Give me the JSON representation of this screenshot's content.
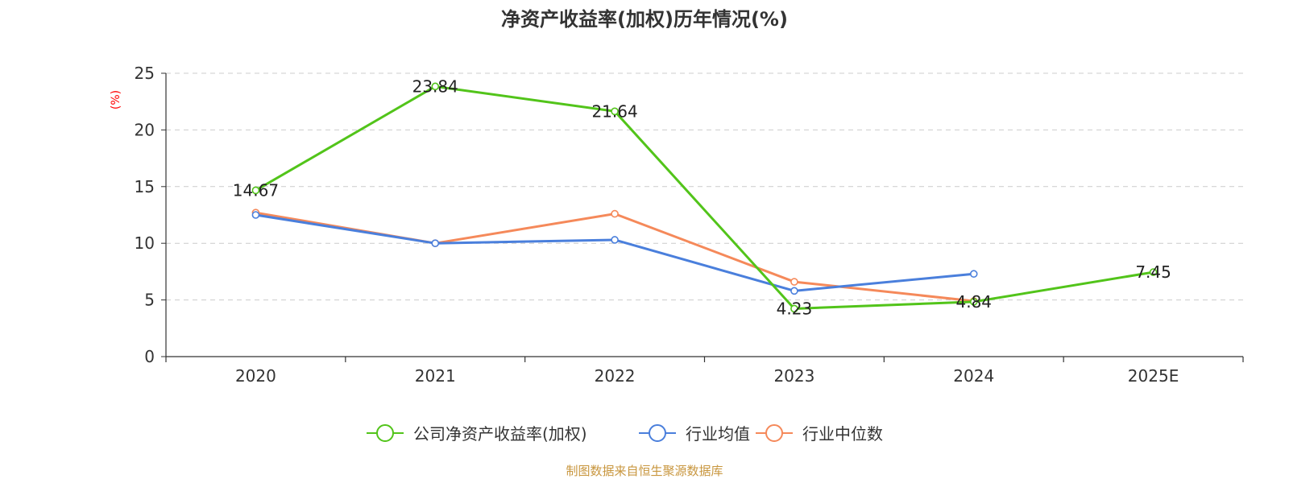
{
  "colors": {
    "company": "#52c41a",
    "industry_avg": "#4a7fdc",
    "industry_median": "#f5895a",
    "source": "#c8963e",
    "ylabel": "#ff0000"
  },
  "chart_data": {
    "type": "line",
    "title": "净资产收益率(加权)历年情况(%)",
    "ylabel": "(%)",
    "xlabel": "",
    "categories": [
      "2020",
      "2021",
      "2022",
      "2023",
      "2024",
      "2025E"
    ],
    "ylim": [
      0,
      25
    ],
    "yticks": [
      0,
      5,
      10,
      15,
      20,
      25
    ],
    "grid": true,
    "legend_position": "bottom",
    "series": [
      {
        "key": "company",
        "name": "公司净资产收益率(加权)",
        "values": [
          14.67,
          23.84,
          21.64,
          4.23,
          4.84,
          7.45
        ],
        "labels": [
          "14.67",
          "23.84",
          "21.64",
          "4.23",
          "4.84",
          "7.45"
        ]
      },
      {
        "key": "industry_avg",
        "name": "行业均值",
        "values": [
          12.5,
          10.0,
          10.3,
          5.8,
          7.3,
          null
        ]
      },
      {
        "key": "industry_median",
        "name": "行业中位数",
        "values": [
          12.7,
          10.0,
          12.6,
          6.6,
          4.9,
          null
        ]
      }
    ]
  },
  "source": "制图数据来自恒生聚源数据库"
}
